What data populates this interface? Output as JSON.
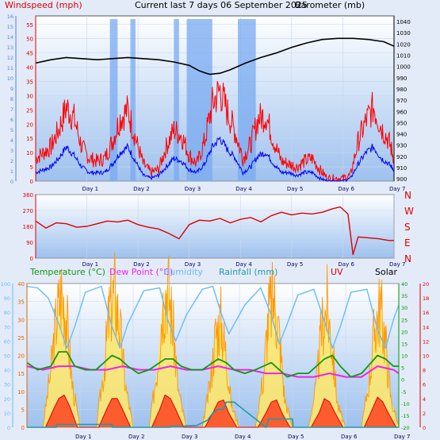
{
  "header": {
    "windspeed_label": "Windspeed (mph)",
    "title": "Current last 7 days 06 September 2025",
    "barometer_label": "Barometer (mb)"
  },
  "legend": {
    "temperature": "Temperature (°C)",
    "dew_point": "Dew Point (°C)",
    "humidity": "Humidity",
    "rainfall": "Rainfall (mm)",
    "uv": "UV",
    "solar": "Solar"
  },
  "colors": {
    "background": "#e4ebf8",
    "plot_top": "#ffffff",
    "plot_bottom": "#9ec1ee",
    "wind_axis": "#4a86e8",
    "gust": "#ff0000",
    "wind": "#0000ff",
    "wind_dir_bars": "#78aaf0",
    "barometer": "#000000",
    "direction": "#dd0000",
    "temperature": "#119911",
    "dew_point": "#ee22ee",
    "humidity": "#66bbff",
    "rainfall": "#2299aa",
    "uv": "#dd0000",
    "solar": "#ff9900",
    "green_axis": "#009900"
  },
  "days": [
    "Day 1",
    "Day 2",
    "Day 3",
    "Day 4",
    "Day 5",
    "Day 6",
    "Day 7"
  ],
  "chart_data": [
    {
      "type": "line",
      "title": "Current last 7 days 06 September 2025",
      "x_unit": "days",
      "xlim": [
        0,
        7
      ],
      "left_axis": {
        "label": "Windspeed (mph)",
        "ylim": [
          0,
          58
        ],
        "ticks": [
          0,
          5,
          10,
          15,
          20,
          25,
          30,
          35,
          40,
          45,
          50,
          55
        ]
      },
      "far_left_axis": {
        "ylim": [
          0,
          16
        ],
        "ticks": [
          0,
          1,
          2,
          3,
          4,
          5,
          6,
          7,
          8,
          9,
          10,
          11,
          12,
          13,
          14,
          15,
          16
        ]
      },
      "right_axis": {
        "label": "Barometer (mb)",
        "ylim": [
          898,
          1045
        ],
        "ticks": [
          900,
          910,
          920,
          930,
          940,
          950,
          960,
          970,
          980,
          990,
          1000,
          1010,
          1020,
          1030,
          1040
        ]
      },
      "series": [
        {
          "name": "Windspeed (mph) gust",
          "kind": "wind_gust",
          "x": [
            0,
            0.15,
            0.3,
            0.45,
            0.6,
            0.75,
            0.9,
            1.05,
            1.2,
            1.35,
            1.5,
            1.65,
            1.8,
            1.95,
            2.1,
            2.25,
            2.4,
            2.55,
            2.7,
            2.85,
            3.0,
            3.15,
            3.3,
            3.45,
            3.6,
            3.75,
            3.9,
            4.05,
            4.2,
            4.35,
            4.5,
            4.65,
            4.8,
            4.95,
            5.1,
            5.25,
            5.4,
            5.55,
            5.7,
            5.85,
            6.0,
            6.15,
            6.3,
            6.45,
            6.6,
            6.75,
            6.9,
            7.0
          ],
          "y": [
            8,
            10,
            12,
            18,
            26,
            22,
            12,
            8,
            7,
            8,
            14,
            22,
            25,
            15,
            6,
            3,
            4,
            12,
            18,
            16,
            9,
            6,
            14,
            27,
            32,
            24,
            17,
            8,
            13,
            22,
            23,
            14,
            7,
            6,
            5,
            7,
            8,
            4,
            1,
            1,
            1,
            2,
            14,
            21,
            26,
            19,
            14,
            8
          ]
        },
        {
          "name": "Windspeed (mph) mean",
          "kind": "wind_mean",
          "x": [
            0,
            0.15,
            0.3,
            0.45,
            0.6,
            0.75,
            0.9,
            1.05,
            1.2,
            1.35,
            1.5,
            1.65,
            1.8,
            1.95,
            2.1,
            2.25,
            2.4,
            2.55,
            2.7,
            2.85,
            3.0,
            3.15,
            3.3,
            3.45,
            3.6,
            3.75,
            3.9,
            4.05,
            4.2,
            4.35,
            4.5,
            4.65,
            4.8,
            4.95,
            5.1,
            5.25,
            5.4,
            5.55,
            5.7,
            5.85,
            6.0,
            6.15,
            6.3,
            6.45,
            6.6,
            6.75,
            6.9,
            7.0
          ],
          "y": [
            3,
            4,
            5,
            8,
            12,
            9,
            5,
            3,
            3,
            3,
            6,
            10,
            12,
            7,
            2,
            1,
            2,
            5,
            8,
            7,
            4,
            3,
            6,
            12,
            15,
            11,
            8,
            3,
            5,
            9,
            10,
            6,
            3,
            3,
            2,
            3,
            3,
            1,
            0,
            0,
            0,
            1,
            6,
            10,
            12,
            8,
            6,
            4
          ]
        },
        {
          "name": "Barometer (mb)",
          "kind": "barometer",
          "x": [
            0,
            0.3,
            0.6,
            0.9,
            1.2,
            1.5,
            1.8,
            2.1,
            2.4,
            2.7,
            3.0,
            3.2,
            3.4,
            3.6,
            3.8,
            4.1,
            4.4,
            4.7,
            5.0,
            5.3,
            5.6,
            5.9,
            6.2,
            6.5,
            6.8,
            7.0
          ],
          "y": [
            1003,
            1006,
            1008,
            1007,
            1006,
            1007,
            1008,
            1007,
            1006,
            1004,
            1001,
            996,
            993,
            994,
            997,
            1003,
            1008,
            1012,
            1017,
            1021,
            1024,
            1025,
            1025,
            1024,
            1022,
            1018
          ]
        },
        {
          "name": "Wind direction bands",
          "kind": "direction_bands",
          "bands": [
            [
              1.45,
              1.6
            ],
            [
              1.85,
              1.95
            ],
            [
              2.7,
              2.8
            ],
            [
              2.95,
              3.45
            ],
            [
              3.95,
              4.3
            ]
          ]
        }
      ]
    },
    {
      "type": "line",
      "x_unit": "days",
      "xlim": [
        0,
        7
      ],
      "left_axis": {
        "ylim": [
          0,
          360
        ],
        "ticks": [
          0,
          90,
          180,
          270,
          360
        ]
      },
      "right_labels": [
        "N",
        "W",
        "S",
        "E",
        "N"
      ],
      "series": [
        {
          "name": "Wind direction",
          "kind": "direction",
          "x": [
            0,
            0.2,
            0.4,
            0.6,
            0.8,
            1.0,
            1.2,
            1.4,
            1.6,
            1.8,
            2.0,
            2.2,
            2.4,
            2.6,
            2.8,
            3.0,
            3.2,
            3.4,
            3.6,
            3.8,
            4.0,
            4.2,
            4.4,
            4.6,
            4.8,
            5.0,
            5.2,
            5.4,
            5.6,
            5.8,
            5.95,
            6.1,
            6.2,
            6.3,
            6.5,
            6.7,
            6.9,
            7.0
          ],
          "y": [
            210,
            170,
            200,
            195,
            175,
            180,
            195,
            210,
            205,
            215,
            190,
            175,
            165,
            140,
            110,
            190,
            215,
            210,
            225,
            200,
            220,
            230,
            205,
            240,
            260,
            245,
            255,
            250,
            260,
            280,
            290,
            250,
            20,
            120,
            115,
            110,
            100,
            100
          ]
        }
      ]
    },
    {
      "type": "line",
      "x_unit": "days",
      "xlim": [
        0,
        7
      ],
      "left_axis": {
        "label": "Temperature (°C)",
        "ylim": [
          0,
          40
        ],
        "ticks": [
          0,
          5,
          10,
          15,
          20,
          25,
          30,
          35,
          40
        ]
      },
      "far_left_axis": {
        "label": "Humidity",
        "ylim": [
          0,
          100
        ],
        "ticks": [
          0,
          10,
          20,
          30,
          40,
          50,
          60,
          70,
          80,
          90,
          100
        ]
      },
      "right_axis": {
        "ylim": [
          -20,
          40
        ],
        "ticks": [
          -20,
          -15,
          -10,
          -5,
          0,
          5,
          10,
          15,
          20,
          25,
          30,
          35,
          40
        ]
      },
      "far_right_axis": {
        "ylim": [
          0,
          20
        ],
        "ticks": [
          0,
          2,
          4,
          6,
          8,
          10,
          12,
          14,
          16,
          18,
          20
        ]
      },
      "series": [
        {
          "name": "Temperature (°C)",
          "kind": "temperature",
          "x": [
            0,
            0.2,
            0.45,
            0.6,
            0.75,
            0.9,
            1.1,
            1.3,
            1.6,
            1.75,
            1.9,
            2.1,
            2.3,
            2.6,
            2.75,
            2.9,
            3.1,
            3.3,
            3.6,
            3.75,
            3.9,
            4.1,
            4.3,
            4.6,
            4.75,
            4.9,
            5.1,
            5.3,
            5.6,
            5.75,
            5.9,
            6.1,
            6.3,
            6.6,
            6.75,
            6.9,
            7.0
          ],
          "y": [
            18,
            16,
            17,
            21,
            21,
            17,
            16,
            16,
            20,
            19,
            17,
            15,
            16,
            19,
            19,
            17,
            16,
            16,
            19,
            18,
            16,
            15,
            16,
            18,
            16,
            14,
            15,
            15,
            19,
            20,
            17,
            14,
            15,
            20,
            19,
            17,
            17
          ]
        },
        {
          "name": "Dew Point (°C)",
          "kind": "dew_point",
          "x": [
            0,
            0.3,
            0.6,
            0.9,
            1.2,
            1.5,
            1.8,
            2.1,
            2.4,
            2.7,
            3.0,
            3.3,
            3.6,
            3.9,
            4.2,
            4.5,
            4.8,
            5.1,
            5.4,
            5.7,
            6.0,
            6.3,
            6.6,
            6.9,
            7.0
          ],
          "y": [
            17,
            16,
            17,
            17,
            16,
            16,
            17,
            16,
            16,
            17,
            16,
            16,
            17,
            16,
            16,
            15,
            15,
            14,
            14,
            15,
            14,
            14,
            17,
            16,
            15
          ]
        },
        {
          "name": "Humidity",
          "kind": "humidity",
          "x": [
            0,
            0.2,
            0.4,
            0.6,
            0.75,
            0.9,
            1.1,
            1.4,
            1.6,
            1.75,
            1.9,
            2.2,
            2.5,
            2.65,
            2.8,
            3.0,
            3.3,
            3.5,
            3.65,
            3.8,
            4.1,
            4.4,
            4.6,
            4.75,
            4.9,
            5.1,
            5.4,
            5.6,
            5.75,
            5.9,
            6.1,
            6.4,
            6.6,
            6.75,
            6.9,
            7.0
          ],
          "y": [
            98,
            97,
            90,
            72,
            55,
            70,
            94,
            98,
            70,
            55,
            72,
            95,
            97,
            75,
            60,
            78,
            96,
            98,
            80,
            65,
            85,
            97,
            78,
            58,
            72,
            92,
            96,
            74,
            55,
            70,
            94,
            96,
            68,
            55,
            75,
            85
          ]
        },
        {
          "name": "Rainfall (mm)",
          "kind": "rainfall",
          "x": [
            0,
            0.55,
            0.56,
            1.6,
            1.61,
            2.7,
            2.71,
            2.9,
            3.2,
            3.4,
            3.5,
            3.6,
            3.7,
            3.75,
            3.9,
            4.5,
            4.55,
            5.0,
            5.01,
            5.95,
            5.96,
            7.0
          ],
          "y": [
            0,
            0,
            0.8,
            0.8,
            0,
            0,
            0.3,
            0.3,
            0.5,
            2,
            4,
            5,
            5,
            7,
            7,
            0,
            2.3,
            2.3,
            0,
            0,
            0,
            0
          ]
        },
        {
          "name": "UV",
          "kind": "uv",
          "x": [
            0,
            0.35,
            0.5,
            0.6,
            0.7,
            0.8,
            0.95,
            1.35,
            1.5,
            1.6,
            1.7,
            1.8,
            1.95,
            2.35,
            2.5,
            2.6,
            2.7,
            2.8,
            2.95,
            3.35,
            3.5,
            3.6,
            3.7,
            3.8,
            3.95,
            4.35,
            4.5,
            4.6,
            4.7,
            4.8,
            4.95,
            5.35,
            5.5,
            5.6,
            5.7,
            5.8,
            5.95,
            6.35,
            6.5,
            6.6,
            6.7,
            6.8,
            6.95,
            7.0
          ],
          "y": [
            0,
            0,
            2.5,
            4,
            4.5,
            3,
            0,
            0,
            2.5,
            4,
            4,
            2.5,
            0,
            0,
            2.5,
            4.5,
            4,
            2.5,
            0,
            0,
            2,
            3.5,
            3.8,
            2,
            0,
            0,
            2,
            3.5,
            3.8,
            2,
            0,
            0,
            2,
            4,
            3.5,
            2,
            0,
            0,
            2.5,
            4.2,
            3.5,
            2,
            0,
            0
          ]
        },
        {
          "name": "Solar",
          "kind": "solar",
          "x": [
            0,
            0.3,
            0.45,
            0.55,
            0.65,
            0.75,
            0.85,
            1.0,
            1.3,
            1.45,
            1.55,
            1.65,
            1.75,
            1.85,
            2.0,
            2.3,
            2.45,
            2.55,
            2.65,
            2.75,
            2.85,
            3.0,
            3.3,
            3.45,
            3.55,
            3.65,
            3.75,
            3.85,
            4.0,
            4.3,
            4.45,
            4.55,
            4.65,
            4.75,
            4.85,
            5.0,
            5.3,
            5.45,
            5.55,
            5.65,
            5.75,
            5.85,
            6.0,
            6.3,
            6.45,
            6.55,
            6.65,
            6.75,
            6.85,
            7.0
          ],
          "y": [
            0,
            0,
            8,
            15,
            19,
            15,
            6,
            0,
            0,
            8,
            16,
            19,
            14,
            6,
            0,
            0,
            8,
            17,
            20,
            14,
            5,
            0,
            0,
            6,
            13,
            15,
            10,
            3,
            0,
            0,
            7,
            16,
            18,
            13,
            4,
            0,
            0,
            6,
            14,
            17,
            11,
            3,
            0,
            0,
            7,
            14,
            17,
            12,
            4,
            0
          ]
        }
      ]
    }
  ]
}
